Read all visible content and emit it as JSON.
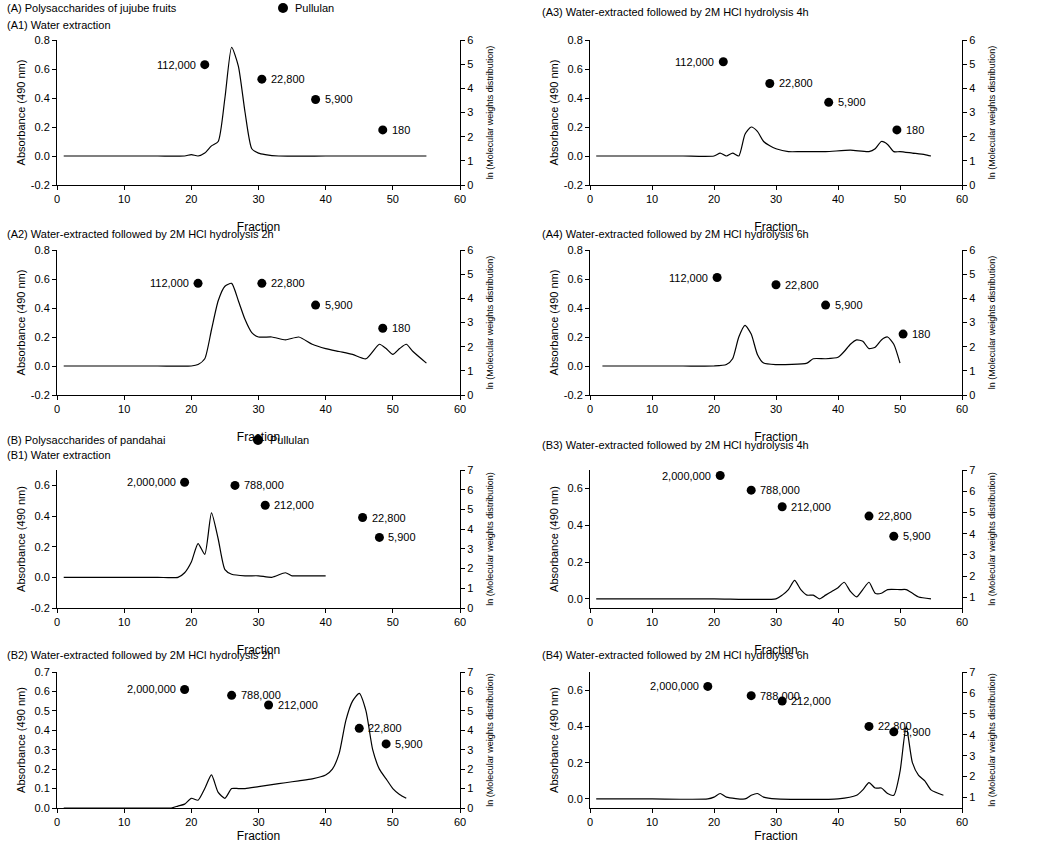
{
  "sections": [
    {
      "title": "(A) Polysaccharides of jujube fruits",
      "legend_entry": "Pullulan"
    },
    {
      "title": "(B) Polysaccharides of pandahai",
      "legend_entry": "Pullulan"
    }
  ],
  "chart_data": [
    {
      "type": "line",
      "group": 0,
      "title": "(A1) Water extraction",
      "x_label": "Fraction",
      "y_label": "Absorbance (490 nm)",
      "y2_label": "ln (Molecular weights distribution)",
      "xlim": [
        0,
        60
      ],
      "xticks": [
        0,
        10,
        20,
        30,
        40,
        50,
        60
      ],
      "ylim": [
        -0.2,
        0.8
      ],
      "yticks": [
        -0.2,
        {
          "value": 0,
          "label": "0.0"
        },
        0.2,
        0.4,
        0.6,
        0.8
      ],
      "y2lim": [
        0,
        6
      ],
      "y2ticks": [
        0,
        1,
        2,
        3,
        4,
        5,
        6
      ],
      "series": [
        {
          "type": "line",
          "color": "#000000",
          "x": [
            1,
            5,
            10,
            15,
            19,
            20,
            21,
            22,
            23,
            24,
            25,
            26,
            27,
            28,
            29,
            30,
            31,
            33,
            40,
            45,
            50,
            55
          ],
          "values": [
            0,
            0,
            0,
            0,
            0,
            0.01,
            0,
            0.02,
            0.07,
            0.1,
            0.4,
            0.75,
            0.62,
            0.3,
            0.05,
            0.02,
            0.01,
            0,
            0,
            0,
            0,
            0
          ]
        },
        {
          "type": "scatter",
          "axis": "y2",
          "marker": "circle",
          "color": "#000000",
          "x": [
            22,
            30.5,
            38.5,
            48.5
          ],
          "values": [
            4.98,
            4.38,
            3.54,
            2.28
          ],
          "labels": [
            "112,000",
            "22,800",
            "5,900",
            "180"
          ]
        }
      ]
    },
    {
      "type": "line",
      "group": 0,
      "title": "(A2) Water-extracted followed by 2M HCl hydrolysis 2h",
      "x_label": "Fraction",
      "y_label": "Absorbance (490 nm)",
      "y2_label": "ln (Molecular weights distribution)",
      "xlim": [
        0,
        60
      ],
      "xticks": [
        0,
        10,
        20,
        30,
        40,
        50,
        60
      ],
      "ylim": [
        -0.2,
        0.8
      ],
      "yticks": [
        -0.2,
        {
          "value": 0,
          "label": "0.0"
        },
        0.2,
        0.4,
        0.6,
        0.8
      ],
      "y2lim": [
        0,
        6
      ],
      "y2ticks": [
        0,
        1,
        2,
        3,
        4,
        5,
        6
      ],
      "series": [
        {
          "type": "line",
          "color": "#000000",
          "x": [
            1,
            5,
            10,
            15,
            20,
            21,
            22,
            23,
            24,
            25,
            26,
            27,
            28,
            29,
            30,
            32,
            34,
            36,
            38,
            40,
            42,
            44,
            46,
            48,
            49,
            50,
            51,
            52,
            53,
            55
          ],
          "values": [
            0,
            0,
            0,
            0,
            0,
            0.01,
            0.05,
            0.25,
            0.45,
            0.55,
            0.57,
            0.45,
            0.32,
            0.23,
            0.2,
            0.2,
            0.18,
            0.2,
            0.15,
            0.12,
            0.1,
            0.08,
            0.05,
            0.15,
            0.12,
            0.08,
            0.12,
            0.15,
            0.1,
            0.02
          ]
        },
        {
          "type": "scatter",
          "axis": "y2",
          "marker": "circle",
          "color": "#000000",
          "x": [
            21,
            30.5,
            38.5,
            48.5
          ],
          "values": [
            4.62,
            4.62,
            3.72,
            2.76
          ],
          "labels": [
            "112,000",
            "22,800",
            "5,900",
            "180"
          ]
        }
      ]
    },
    {
      "type": "line",
      "group": 0,
      "title": "(A3) Water-extracted followed by 2M HCl hydrolysis 4h",
      "x_label": "Fraction",
      "y_label": "Absorbance (490 nm)",
      "y2_label": "ln (Molecular weights distribution)",
      "xlim": [
        0,
        60
      ],
      "xticks": [
        0,
        10,
        20,
        30,
        40,
        50,
        60
      ],
      "ylim": [
        -0.2,
        0.8
      ],
      "yticks": [
        -0.2,
        {
          "value": 0,
          "label": "0.0"
        },
        0.2,
        0.4,
        0.6,
        0.8
      ],
      "y2lim": [
        0,
        6
      ],
      "y2ticks": [
        0,
        1,
        2,
        3,
        4,
        5,
        6
      ],
      "series": [
        {
          "type": "line",
          "color": "#000000",
          "x": [
            1,
            5,
            10,
            15,
            20,
            21,
            22,
            23,
            24,
            25,
            26,
            27,
            28,
            29,
            30,
            32,
            34,
            38,
            42,
            45,
            46,
            47,
            48,
            49,
            50,
            52,
            54,
            55
          ],
          "values": [
            0,
            0,
            0,
            0,
            0,
            0.02,
            0,
            0.02,
            0,
            0.15,
            0.2,
            0.17,
            0.1,
            0.07,
            0.05,
            0.03,
            0.03,
            0.03,
            0.04,
            0.03,
            0.05,
            0.1,
            0.08,
            0.03,
            0.03,
            0.02,
            0.01,
            0
          ]
        },
        {
          "type": "scatter",
          "axis": "y2",
          "marker": "circle",
          "color": "#000000",
          "x": [
            21.5,
            29,
            38.5,
            49.5
          ],
          "values": [
            5.1,
            4.2,
            3.42,
            2.28
          ],
          "labels": [
            "112,000",
            "22,800",
            "5,900",
            "180"
          ]
        }
      ]
    },
    {
      "type": "line",
      "group": 0,
      "title": "(A4) Water-extracted followed by 2M HCl hydrolysis 6h",
      "x_label": "Fraction",
      "y_label": "Absorbance (490 nm)",
      "y2_label": "ln (Molecular weights distribution)",
      "xlim": [
        0,
        60
      ],
      "xticks": [
        0,
        10,
        20,
        30,
        40,
        50,
        60
      ],
      "ylim": [
        -0.2,
        0.8
      ],
      "yticks": [
        -0.2,
        {
          "value": 0,
          "label": "0.0"
        },
        0.2,
        0.4,
        0.6,
        0.8
      ],
      "y2lim": [
        0,
        6
      ],
      "y2ticks": [
        0,
        1,
        2,
        3,
        4,
        5,
        6
      ],
      "series": [
        {
          "type": "line",
          "color": "#000000",
          "x": [
            2,
            5,
            10,
            15,
            20,
            22,
            23,
            24,
            25,
            26,
            27,
            28,
            30,
            35,
            36,
            38,
            40,
            41,
            42,
            43,
            44,
            45,
            46,
            47,
            48,
            49,
            50
          ],
          "values": [
            0,
            0,
            0,
            0,
            0,
            0.01,
            0.05,
            0.2,
            0.28,
            0.22,
            0.08,
            0.02,
            0.01,
            0.02,
            0.05,
            0.05,
            0.06,
            0.1,
            0.15,
            0.18,
            0.17,
            0.12,
            0.13,
            0.18,
            0.2,
            0.15,
            0.02
          ]
        },
        {
          "type": "scatter",
          "axis": "y2",
          "marker": "circle",
          "color": "#000000",
          "x": [
            20.5,
            30,
            38,
            50.5
          ],
          "values": [
            4.86,
            4.56,
            3.72,
            2.52
          ],
          "labels": [
            "112,000",
            "22,800",
            "5,900",
            "180"
          ]
        }
      ]
    },
    {
      "type": "line",
      "group": 1,
      "title": "(B1) Water extraction",
      "x_label": "Fraction",
      "y_label": "Absorbance (490 nm)",
      "y2_label": "ln (Molecular weights distribution)",
      "xlim": [
        0,
        60
      ],
      "xticks": [
        0,
        10,
        20,
        30,
        40,
        50,
        60
      ],
      "ylim": [
        -0.2,
        0.7
      ],
      "yticks": [
        -0.2,
        {
          "value": 0,
          "label": "0.0"
        },
        0.2,
        0.4,
        0.6
      ],
      "y2lim": [
        0,
        7
      ],
      "y2ticks": [
        0,
        1,
        2,
        3,
        4,
        5,
        6,
        7
      ],
      "series": [
        {
          "type": "line",
          "color": "#000000",
          "x": [
            1,
            5,
            10,
            15,
            18,
            19,
            20,
            21,
            22,
            23,
            24,
            25,
            26,
            28,
            30,
            32,
            34,
            35,
            36,
            40
          ],
          "values": [
            0,
            0,
            0,
            0,
            0,
            0.03,
            0.1,
            0.22,
            0.15,
            0.42,
            0.25,
            0.05,
            0.02,
            0.01,
            0.01,
            0,
            0.03,
            0.01,
            0.01,
            0.01
          ]
        },
        {
          "type": "scatter",
          "axis": "y2",
          "marker": "circle",
          "color": "#000000",
          "x": [
            19,
            26.5,
            31,
            45.5,
            48
          ],
          "values": [
            6.38,
            6.22,
            5.21,
            4.59,
            3.58
          ],
          "labels": [
            "2,000,000",
            "788,000",
            "212,000",
            "22,800",
            "5,900"
          ]
        }
      ]
    },
    {
      "type": "line",
      "group": 1,
      "title": "(B2) Water-extracted followed by 2M HCl hydrolysis 2h",
      "x_label": "Fraction",
      "y_label": "Absorbance (490 nm)",
      "y2_label": "ln (Molecular weights distribution)",
      "xlim": [
        0,
        60
      ],
      "xticks": [
        0,
        10,
        20,
        30,
        40,
        50,
        60
      ],
      "ylim": [
        0,
        0.7
      ],
      "yticks": [
        {
          "value": 0,
          "label": "0.0"
        },
        0.1,
        0.2,
        0.3,
        0.4,
        0.5,
        0.6,
        0.7
      ],
      "y2lim": [
        0,
        7
      ],
      "y2ticks": [
        0,
        1,
        2,
        3,
        4,
        5,
        6,
        7
      ],
      "series": [
        {
          "type": "line",
          "color": "#000000",
          "x": [
            1,
            5,
            10,
            15,
            17,
            18,
            19,
            20,
            21,
            22,
            23,
            24,
            25,
            26,
            27,
            28,
            30,
            32,
            34,
            36,
            38,
            40,
            41,
            42,
            43,
            44,
            45,
            46,
            47,
            48,
            49,
            50,
            51,
            52
          ],
          "values": [
            0,
            0,
            0,
            0,
            0,
            0.01,
            0.02,
            0.05,
            0.04,
            0.1,
            0.17,
            0.08,
            0.05,
            0.1,
            0.1,
            0.1,
            0.11,
            0.12,
            0.13,
            0.14,
            0.15,
            0.17,
            0.2,
            0.28,
            0.45,
            0.55,
            0.59,
            0.5,
            0.3,
            0.2,
            0.15,
            0.1,
            0.07,
            0.05
          ]
        },
        {
          "type": "scatter",
          "axis": "y2",
          "marker": "circle",
          "color": "#000000",
          "x": [
            19,
            26,
            31.5,
            45,
            49
          ],
          "values": [
            6.1,
            5.8,
            5.3,
            4.1,
            3.3
          ],
          "labels": [
            "2,000,000",
            "788,000",
            "212,000",
            "22,800",
            "5,900"
          ]
        }
      ]
    },
    {
      "type": "line",
      "group": 1,
      "title": "(B3) Water-extracted followed by 2M HCl hydrolysis 4h",
      "x_label": "Fraction",
      "y_label": "Absorbance (490 nm)",
      "y2_label": "ln (Molecular weights distribution)",
      "xlim": [
        0,
        60
      ],
      "xticks": [
        0,
        10,
        20,
        30,
        40,
        50,
        60
      ],
      "ylim": [
        -0.05,
        0.7
      ],
      "yticks": [
        {
          "value": 0,
          "label": "0.0"
        },
        0.2,
        0.4,
        0.6
      ],
      "y2lim": [
        0.5,
        7
      ],
      "y2ticks": [
        1,
        2,
        3,
        4,
        5,
        6,
        7
      ],
      "series": [
        {
          "type": "line",
          "color": "#000000",
          "x": [
            1,
            5,
            10,
            20,
            30,
            31,
            32,
            33,
            34,
            35,
            36,
            37,
            38,
            39,
            40,
            41,
            42,
            43,
            44,
            45,
            46,
            47,
            48,
            50,
            51,
            52,
            53,
            55
          ],
          "values": [
            0,
            0,
            0,
            0,
            0,
            0.02,
            0.05,
            0.1,
            0.05,
            0.02,
            0.02,
            0,
            0.02,
            0.04,
            0.06,
            0.09,
            0.04,
            0.01,
            0.05,
            0.09,
            0.03,
            0.03,
            0.05,
            0.05,
            0.05,
            0.03,
            0.01,
            0
          ]
        },
        {
          "type": "scatter",
          "axis": "y2",
          "marker": "circle",
          "color": "#000000",
          "x": [
            21,
            26,
            31,
            45,
            49
          ],
          "values": [
            6.74,
            6.05,
            5.27,
            4.83,
            3.88
          ],
          "labels": [
            "2,000,000",
            "788,000",
            "212,000",
            "22,800",
            "5,900"
          ]
        }
      ]
    },
    {
      "type": "line",
      "group": 1,
      "title": "(B4) Water-extracted followed by 2M HCl hydrolysis 6h",
      "x_label": "Fraction",
      "y_label": "Absorbance (490 nm)",
      "y2_label": "ln (Molecular weights distribution)",
      "xlim": [
        0,
        60
      ],
      "xticks": [
        0,
        10,
        20,
        30,
        40,
        50,
        60
      ],
      "ylim": [
        -0.05,
        0.7
      ],
      "yticks": [
        {
          "value": 0,
          "label": "0.0"
        },
        0.2,
        0.4,
        0.6
      ],
      "y2lim": [
        0.5,
        7
      ],
      "y2ticks": [
        1,
        2,
        3,
        4,
        5,
        6,
        7
      ],
      "series": [
        {
          "type": "line",
          "color": "#000000",
          "x": [
            1,
            5,
            10,
            19,
            20,
            21,
            22,
            25,
            26,
            27,
            28,
            30,
            40,
            43,
            44,
            45,
            46,
            47,
            48,
            49,
            50,
            51,
            52,
            53,
            54,
            55,
            57
          ],
          "values": [
            0,
            0,
            0,
            0,
            0.01,
            0.03,
            0.01,
            0,
            0.02,
            0.03,
            0.01,
            0,
            0,
            0.02,
            0.05,
            0.09,
            0.06,
            0.06,
            0.03,
            0.02,
            0.15,
            0.4,
            0.2,
            0.13,
            0.1,
            0.05,
            0.02
          ]
        },
        {
          "type": "scatter",
          "axis": "y2",
          "marker": "circle",
          "color": "#000000",
          "x": [
            19,
            26,
            31,
            45,
            49
          ],
          "values": [
            6.31,
            5.87,
            5.61,
            4.4,
            4.14
          ],
          "labels": [
            "2,000,000",
            "788,000",
            "212,000",
            "22,800",
            "5,900"
          ]
        }
      ]
    }
  ]
}
